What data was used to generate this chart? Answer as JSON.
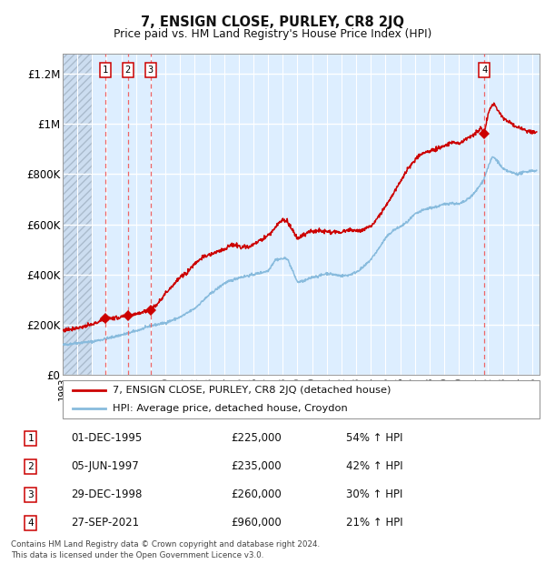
{
  "title": "7, ENSIGN CLOSE, PURLEY, CR8 2JQ",
  "subtitle": "Price paid vs. HM Land Registry's House Price Index (HPI)",
  "transactions": [
    {
      "num": 1,
      "date": "1995-12-01",
      "price": 225000,
      "pct": "54%",
      "x": 1995.92
    },
    {
      "num": 2,
      "date": "1997-06-05",
      "price": 235000,
      "pct": "42%",
      "x": 1997.43
    },
    {
      "num": 3,
      "date": "1998-12-29",
      "price": 260000,
      "pct": "30%",
      "x": 1998.99
    },
    {
      "num": 4,
      "date": "2021-09-27",
      "price": 960000,
      "pct": "21%",
      "x": 2021.74
    }
  ],
  "xlim": [
    1993.0,
    2025.5
  ],
  "ylim": [
    0,
    1280000
  ],
  "yticks": [
    0,
    200000,
    400000,
    600000,
    800000,
    1000000,
    1200000
  ],
  "ytick_labels": [
    "£0",
    "£200K",
    "£400K",
    "£600K",
    "£800K",
    "£1M",
    "£1.2M"
  ],
  "legend_line1": "7, ENSIGN CLOSE, PURLEY, CR8 2JQ (detached house)",
  "legend_line2": "HPI: Average price, detached house, Croydon",
  "table_rows": [
    [
      "1",
      "01-DEC-1995",
      "£225,000",
      "54% ↑ HPI"
    ],
    [
      "2",
      "05-JUN-1997",
      "£235,000",
      "42% ↑ HPI"
    ],
    [
      "3",
      "29-DEC-1998",
      "£260,000",
      "30% ↑ HPI"
    ],
    [
      "4",
      "27-SEP-2021",
      "£960,000",
      "21% ↑ HPI"
    ]
  ],
  "footer": "Contains HM Land Registry data © Crown copyright and database right 2024.\nThis data is licensed under the Open Government Licence v3.0.",
  "plot_bg": "#ddeeff",
  "red_color": "#cc0000",
  "blue_color": "#88bbdd",
  "grid_color": "#ffffff",
  "dashed_color": "#ee6666",
  "hatch_end": 1995.0,
  "blue_anchors": [
    [
      1993.0,
      120000
    ],
    [
      1994.0,
      128000
    ],
    [
      1995.0,
      133000
    ],
    [
      1995.92,
      144000
    ],
    [
      1997.0,
      160000
    ],
    [
      1997.43,
      166000
    ],
    [
      1998.5,
      185000
    ],
    [
      1998.99,
      196000
    ],
    [
      2000.0,
      208000
    ],
    [
      2001.0,
      230000
    ],
    [
      2002.0,
      265000
    ],
    [
      2003.0,
      320000
    ],
    [
      2004.0,
      365000
    ],
    [
      2005.0,
      388000
    ],
    [
      2006.0,
      400000
    ],
    [
      2007.0,
      415000
    ],
    [
      2007.5,
      460000
    ],
    [
      2008.3,
      465000
    ],
    [
      2009.0,
      370000
    ],
    [
      2009.5,
      375000
    ],
    [
      2010.0,
      390000
    ],
    [
      2010.5,
      395000
    ],
    [
      2011.0,
      405000
    ],
    [
      2011.5,
      400000
    ],
    [
      2012.0,
      395000
    ],
    [
      2012.5,
      398000
    ],
    [
      2013.0,
      410000
    ],
    [
      2013.5,
      430000
    ],
    [
      2014.0,
      460000
    ],
    [
      2014.5,
      500000
    ],
    [
      2015.0,
      545000
    ],
    [
      2015.5,
      575000
    ],
    [
      2016.0,
      590000
    ],
    [
      2016.5,
      610000
    ],
    [
      2017.0,
      640000
    ],
    [
      2017.5,
      655000
    ],
    [
      2018.0,
      665000
    ],
    [
      2018.5,
      670000
    ],
    [
      2019.0,
      680000
    ],
    [
      2019.5,
      685000
    ],
    [
      2020.0,
      680000
    ],
    [
      2020.5,
      695000
    ],
    [
      2021.0,
      720000
    ],
    [
      2021.5,
      760000
    ],
    [
      2021.74,
      785000
    ],
    [
      2022.0,
      830000
    ],
    [
      2022.3,
      870000
    ],
    [
      2022.6,
      855000
    ],
    [
      2023.0,
      820000
    ],
    [
      2023.5,
      808000
    ],
    [
      2024.0,
      800000
    ],
    [
      2024.5,
      808000
    ],
    [
      2025.0,
      815000
    ],
    [
      2025.3,
      812000
    ]
  ],
  "red_anchors": [
    [
      1993.0,
      178000
    ],
    [
      1994.0,
      188000
    ],
    [
      1995.0,
      200000
    ],
    [
      1995.92,
      225000
    ],
    [
      1996.5,
      227000
    ],
    [
      1997.0,
      230000
    ],
    [
      1997.43,
      235000
    ],
    [
      1997.8,
      242000
    ],
    [
      1998.5,
      252000
    ],
    [
      1998.99,
      260000
    ],
    [
      1999.3,
      275000
    ],
    [
      1999.8,
      310000
    ],
    [
      2000.3,
      345000
    ],
    [
      2001.0,
      388000
    ],
    [
      2001.5,
      410000
    ],
    [
      2002.0,
      445000
    ],
    [
      2002.5,
      468000
    ],
    [
      2003.0,
      478000
    ],
    [
      2003.5,
      490000
    ],
    [
      2004.0,
      500000
    ],
    [
      2004.3,
      512000
    ],
    [
      2004.7,
      518000
    ],
    [
      2005.0,
      514000
    ],
    [
      2005.3,
      510000
    ],
    [
      2005.8,
      512000
    ],
    [
      2006.3,
      530000
    ],
    [
      2006.8,
      548000
    ],
    [
      2007.0,
      558000
    ],
    [
      2007.3,
      572000
    ],
    [
      2007.7,
      605000
    ],
    [
      2008.0,
      620000
    ],
    [
      2008.3,
      610000
    ],
    [
      2008.7,
      575000
    ],
    [
      2009.0,
      540000
    ],
    [
      2009.3,
      555000
    ],
    [
      2009.7,
      568000
    ],
    [
      2010.0,
      572000
    ],
    [
      2010.5,
      575000
    ],
    [
      2011.0,
      572000
    ],
    [
      2011.5,
      568000
    ],
    [
      2012.0,
      570000
    ],
    [
      2012.3,
      575000
    ],
    [
      2012.7,
      578000
    ],
    [
      2013.0,
      574000
    ],
    [
      2013.3,
      578000
    ],
    [
      2013.7,
      582000
    ],
    [
      2014.0,
      590000
    ],
    [
      2014.5,
      628000
    ],
    [
      2015.0,
      670000
    ],
    [
      2015.5,
      720000
    ],
    [
      2016.0,
      770000
    ],
    [
      2016.5,
      820000
    ],
    [
      2017.0,
      858000
    ],
    [
      2017.5,
      882000
    ],
    [
      2018.0,
      890000
    ],
    [
      2018.5,
      900000
    ],
    [
      2019.0,
      912000
    ],
    [
      2019.5,
      928000
    ],
    [
      2020.0,
      922000
    ],
    [
      2020.5,
      938000
    ],
    [
      2021.0,
      958000
    ],
    [
      2021.3,
      970000
    ],
    [
      2021.5,
      985000
    ],
    [
      2021.74,
      960000
    ],
    [
      2021.9,
      1010000
    ],
    [
      2022.0,
      1040000
    ],
    [
      2022.2,
      1068000
    ],
    [
      2022.4,
      1080000
    ],
    [
      2022.6,
      1058000
    ],
    [
      2022.8,
      1040000
    ],
    [
      2023.0,
      1025000
    ],
    [
      2023.3,
      1010000
    ],
    [
      2023.6,
      1002000
    ],
    [
      2024.0,
      985000
    ],
    [
      2024.5,
      975000
    ],
    [
      2025.0,
      968000
    ],
    [
      2025.3,
      962000
    ]
  ]
}
